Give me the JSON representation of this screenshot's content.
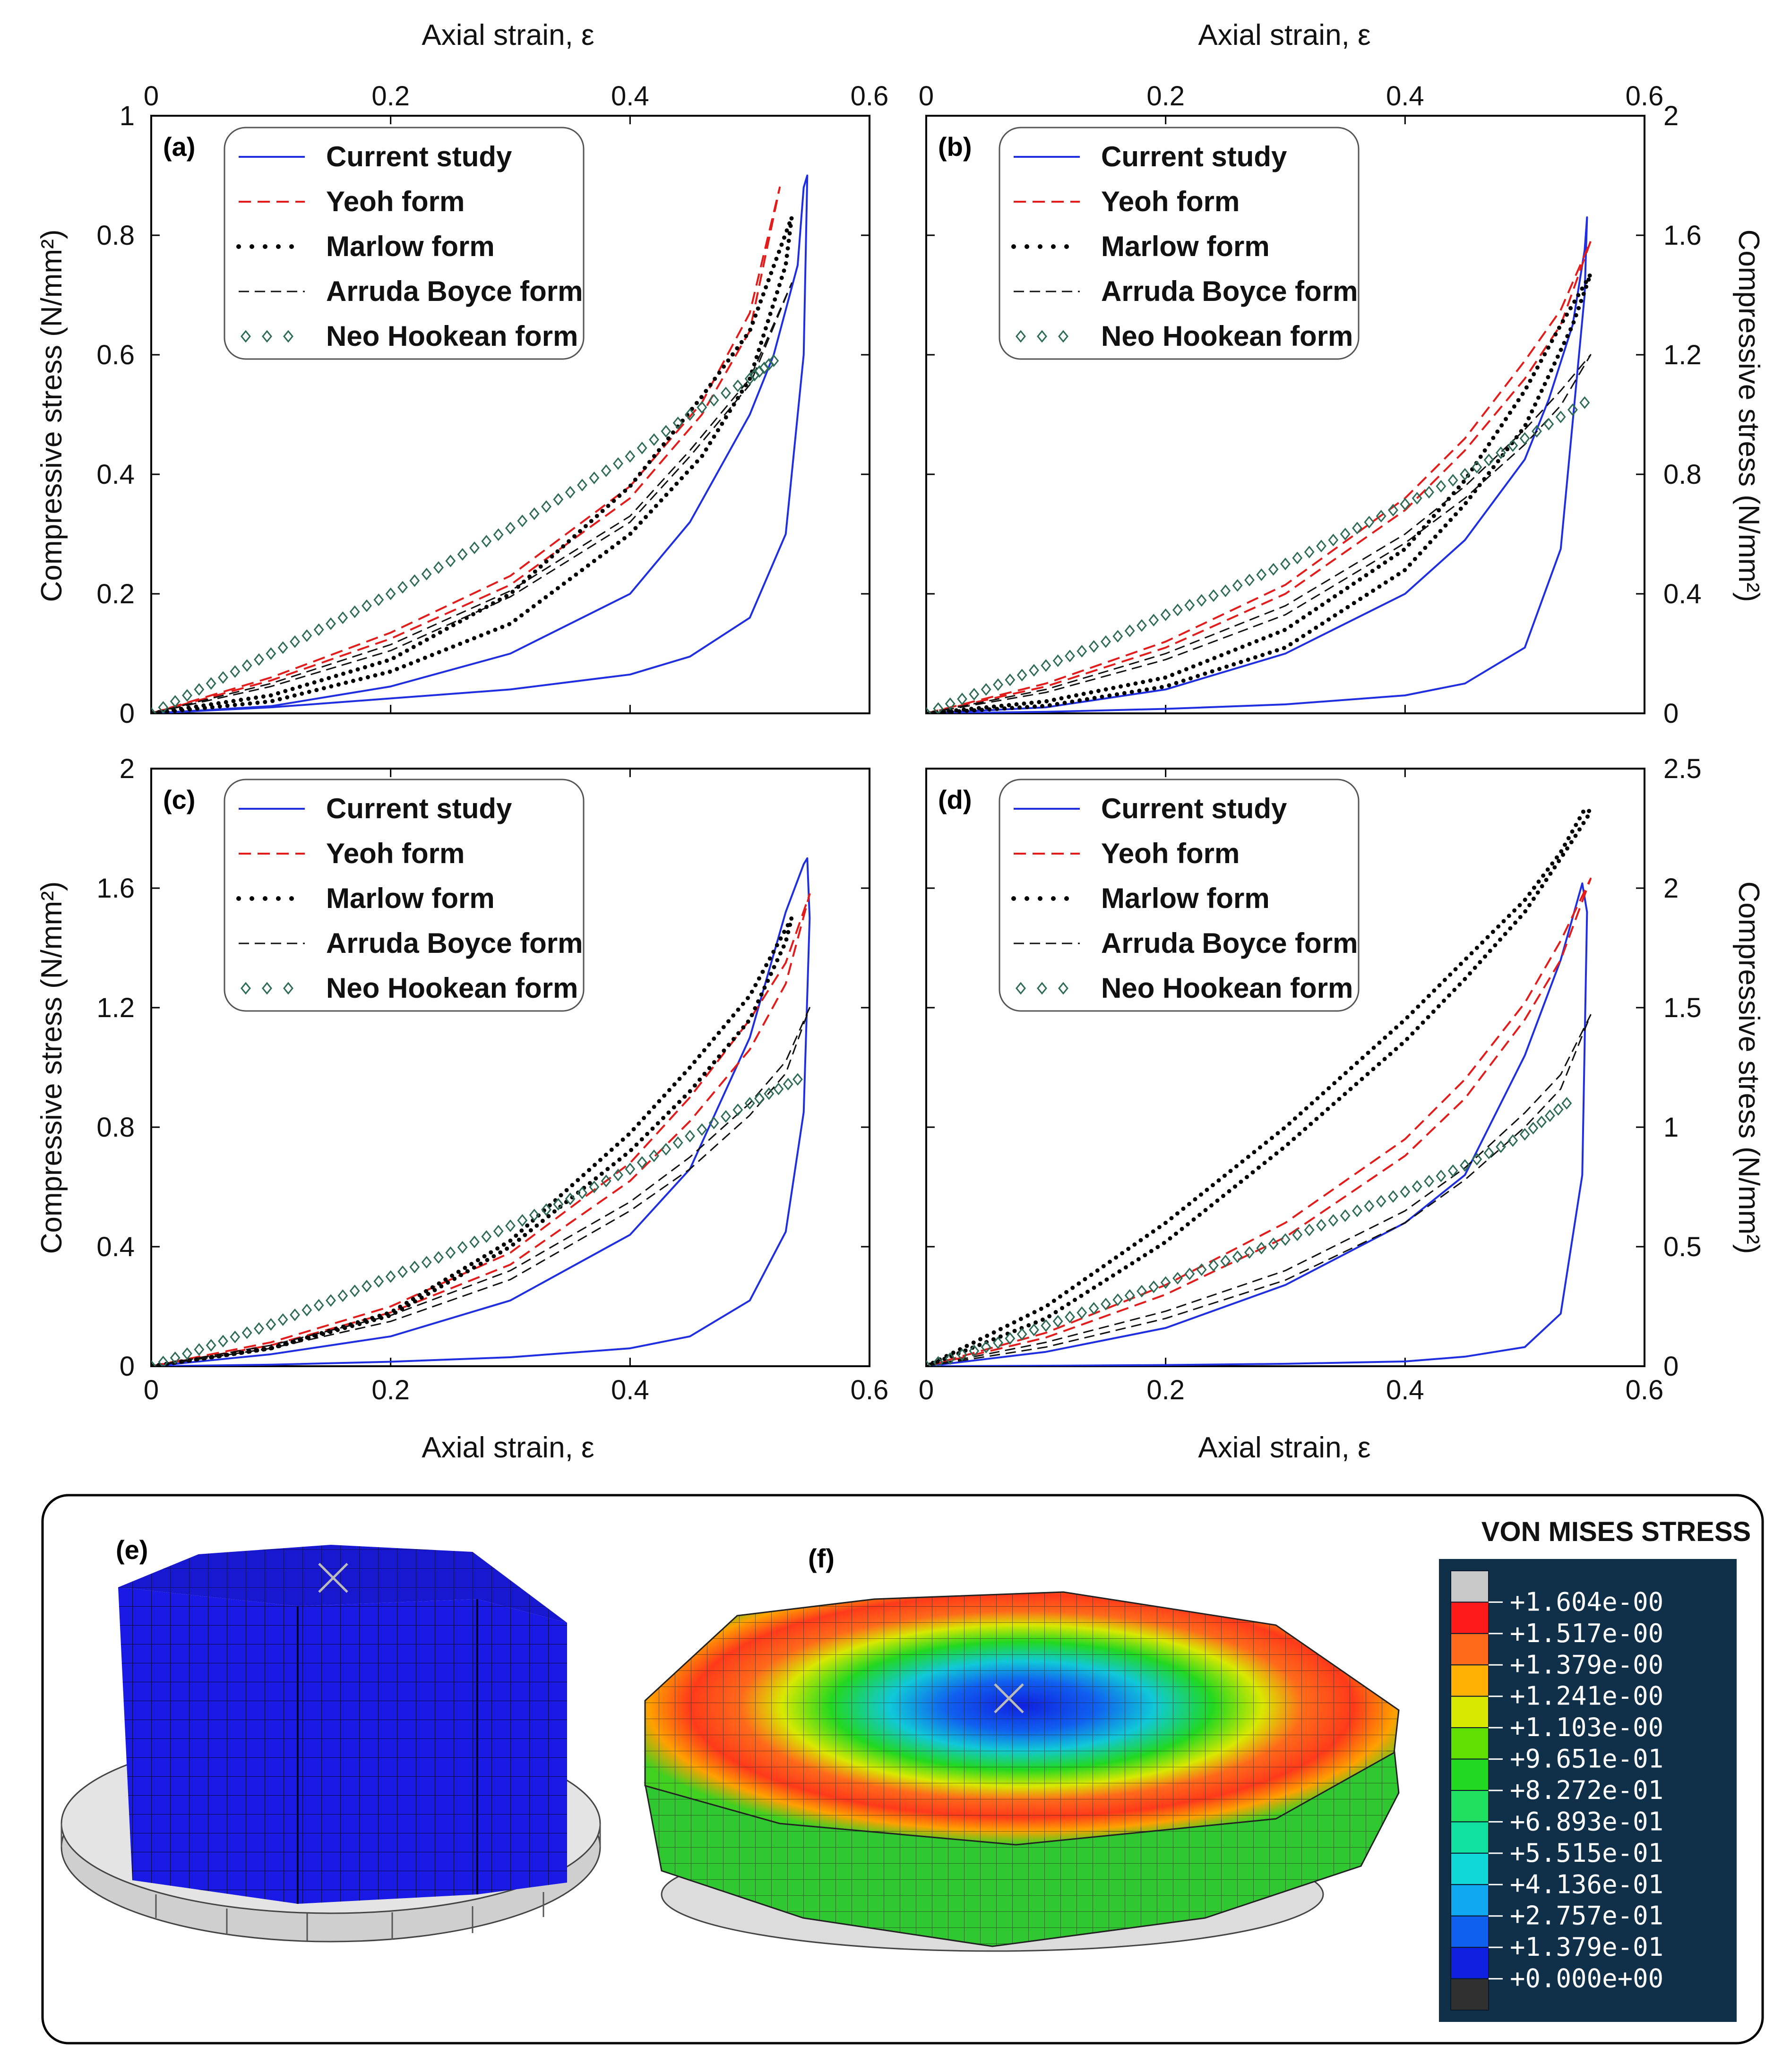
{
  "chart_data": [
    {
      "id": "a",
      "type": "line",
      "panel_label": "(a)",
      "xlabel_top": "Axial strain, ε",
      "ylabel_left": "Compressive stress (N/mm²)",
      "xlim": [
        0,
        0.6
      ],
      "ylim": [
        0,
        1
      ],
      "xticks": [
        "0",
        "0.2",
        "0.4",
        "0.6"
      ],
      "yticks": [
        "0",
        "0.2",
        "0.4",
        "0.6",
        "0.8",
        "1"
      ],
      "legend_position": "top-left",
      "series": [
        {
          "name": "Current study",
          "style": "solid",
          "color": "#1f2fe0",
          "x": [
            0,
            0.1,
            0.2,
            0.3,
            0.4,
            0.45,
            0.5,
            0.53,
            0.545,
            0.548,
            0.545,
            0.54,
            0.52,
            0.5,
            0.45,
            0.4,
            0.3,
            0.2,
            0.1,
            0
          ],
          "y": [
            0,
            0.01,
            0.025,
            0.04,
            0.065,
            0.095,
            0.16,
            0.3,
            0.6,
            0.9,
            0.88,
            0.75,
            0.6,
            0.5,
            0.32,
            0.2,
            0.1,
            0.045,
            0.012,
            0
          ]
        },
        {
          "name": "Yeoh form",
          "style": "dashed",
          "color": "#e21b1b",
          "x": [
            0,
            0.1,
            0.2,
            0.3,
            0.4,
            0.46,
            0.5,
            0.525,
            0.5,
            0.46,
            0.4,
            0.3,
            0.2,
            0.1,
            0
          ],
          "y": [
            0,
            0.06,
            0.135,
            0.23,
            0.38,
            0.52,
            0.67,
            0.88,
            0.64,
            0.5,
            0.36,
            0.215,
            0.125,
            0.055,
            0
          ]
        },
        {
          "name": "Marlow form",
          "style": "dotted",
          "color": "#000000",
          "x": [
            0,
            0.1,
            0.2,
            0.3,
            0.4,
            0.46,
            0.5,
            0.535,
            0.53,
            0.5,
            0.46,
            0.4,
            0.3,
            0.2,
            0.1,
            0
          ],
          "y": [
            0,
            0.03,
            0.09,
            0.2,
            0.38,
            0.53,
            0.64,
            0.83,
            0.75,
            0.56,
            0.43,
            0.3,
            0.15,
            0.07,
            0.02,
            0
          ]
        },
        {
          "name": "Arruda Boyce form",
          "style": "longdash",
          "color": "#111111",
          "x": [
            0,
            0.1,
            0.2,
            0.3,
            0.4,
            0.45,
            0.5,
            0.535,
            0.5,
            0.45,
            0.4,
            0.3,
            0.2,
            0.1,
            0
          ],
          "y": [
            0,
            0.05,
            0.115,
            0.205,
            0.33,
            0.44,
            0.56,
            0.72,
            0.55,
            0.43,
            0.32,
            0.195,
            0.105,
            0.045,
            0
          ]
        },
        {
          "name": "Neo Hookean form",
          "style": "markers",
          "color": "#2e6b57",
          "x": [
            0,
            0.05,
            0.1,
            0.15,
            0.2,
            0.25,
            0.3,
            0.35,
            0.4,
            0.45,
            0.5,
            0.52
          ],
          "y": [
            0,
            0.05,
            0.1,
            0.15,
            0.2,
            0.255,
            0.31,
            0.37,
            0.43,
            0.5,
            0.56,
            0.59
          ]
        }
      ]
    },
    {
      "id": "b",
      "type": "line",
      "panel_label": "(b)",
      "xlabel_top": "Axial strain, ε",
      "ylabel_right": "Compressive stress (N/mm²)",
      "xlim": [
        0,
        0.6
      ],
      "ylim": [
        0,
        2
      ],
      "xticks": [
        "0",
        "0.2",
        "0.4",
        "0.6"
      ],
      "yticks": [
        "0",
        "0.4",
        "0.8",
        "1.2",
        "1.6",
        "2"
      ],
      "legend_position": "top-left",
      "series": [
        {
          "name": "Current study",
          "style": "solid",
          "color": "#1f2fe0",
          "x": [
            0,
            0.1,
            0.2,
            0.3,
            0.4,
            0.45,
            0.5,
            0.53,
            0.55,
            0.552,
            0.55,
            0.54,
            0.52,
            0.5,
            0.45,
            0.4,
            0.3,
            0.2,
            0.1,
            0
          ],
          "y": [
            0,
            0.005,
            0.015,
            0.03,
            0.06,
            0.1,
            0.22,
            0.55,
            1.4,
            1.66,
            1.55,
            1.3,
            1.05,
            0.85,
            0.58,
            0.4,
            0.2,
            0.08,
            0.02,
            0
          ]
        },
        {
          "name": "Yeoh form",
          "style": "dashed",
          "color": "#e21b1b",
          "x": [
            0,
            0.1,
            0.2,
            0.3,
            0.4,
            0.45,
            0.5,
            0.53,
            0.555,
            0.53,
            0.5,
            0.45,
            0.4,
            0.3,
            0.2,
            0.1,
            0
          ],
          "y": [
            0,
            0.1,
            0.24,
            0.43,
            0.72,
            0.92,
            1.18,
            1.35,
            1.58,
            1.3,
            1.12,
            0.88,
            0.68,
            0.4,
            0.22,
            0.09,
            0
          ]
        },
        {
          "name": "Marlow form",
          "style": "dotted",
          "color": "#000000",
          "x": [
            0,
            0.1,
            0.2,
            0.3,
            0.4,
            0.45,
            0.5,
            0.53,
            0.555,
            0.54,
            0.5,
            0.45,
            0.4,
            0.3,
            0.2,
            0.1,
            0
          ],
          "y": [
            0,
            0.04,
            0.12,
            0.28,
            0.55,
            0.78,
            1.08,
            1.3,
            1.47,
            1.3,
            0.96,
            0.7,
            0.48,
            0.22,
            0.09,
            0.025,
            0
          ]
        },
        {
          "name": "Arruda Boyce form",
          "style": "longdash",
          "color": "#111111",
          "x": [
            0,
            0.1,
            0.2,
            0.3,
            0.4,
            0.45,
            0.5,
            0.53,
            0.555,
            0.53,
            0.5,
            0.45,
            0.4,
            0.3,
            0.2,
            0.1,
            0
          ],
          "y": [
            0,
            0.08,
            0.2,
            0.36,
            0.6,
            0.76,
            0.95,
            1.08,
            1.2,
            1.03,
            0.9,
            0.72,
            0.57,
            0.33,
            0.18,
            0.07,
            0
          ]
        },
        {
          "name": "Neo Hookean form",
          "style": "markers",
          "color": "#2e6b57",
          "x": [
            0,
            0.05,
            0.1,
            0.15,
            0.2,
            0.25,
            0.3,
            0.35,
            0.4,
            0.45,
            0.5,
            0.55
          ],
          "y": [
            0,
            0.08,
            0.16,
            0.24,
            0.33,
            0.41,
            0.5,
            0.6,
            0.7,
            0.8,
            0.92,
            1.04
          ]
        }
      ]
    },
    {
      "id": "c",
      "type": "line",
      "panel_label": "(c)",
      "xlabel_bottom": "Axial strain, ε",
      "ylabel_left": "Compressive stress (N/mm²)",
      "xlim": [
        0,
        0.6
      ],
      "ylim": [
        0,
        2
      ],
      "xticks": [
        "0",
        "0.2",
        "0.4",
        "0.6"
      ],
      "yticks": [
        "0",
        "0.4",
        "0.8",
        "1.2",
        "1.6",
        "2"
      ],
      "legend_position": "top-left",
      "series": [
        {
          "name": "Current study",
          "style": "solid",
          "color": "#1f2fe0",
          "x": [
            0,
            0.1,
            0.2,
            0.3,
            0.4,
            0.45,
            0.5,
            0.53,
            0.545,
            0.55,
            0.548,
            0.545,
            0.53,
            0.5,
            0.45,
            0.4,
            0.3,
            0.2,
            0.1,
            0
          ],
          "y": [
            0,
            0.005,
            0.015,
            0.03,
            0.06,
            0.1,
            0.22,
            0.45,
            0.85,
            1.5,
            1.7,
            1.68,
            1.52,
            1.1,
            0.66,
            0.44,
            0.22,
            0.1,
            0.04,
            0
          ]
        },
        {
          "name": "Yeoh form",
          "style": "dashed",
          "color": "#e21b1b",
          "x": [
            0,
            0.1,
            0.2,
            0.3,
            0.4,
            0.45,
            0.5,
            0.53,
            0.55,
            0.53,
            0.5,
            0.45,
            0.4,
            0.3,
            0.2,
            0.1,
            0
          ],
          "y": [
            0,
            0.08,
            0.2,
            0.38,
            0.68,
            0.9,
            1.16,
            1.35,
            1.58,
            1.28,
            1.06,
            0.82,
            0.62,
            0.34,
            0.18,
            0.07,
            0
          ]
        },
        {
          "name": "Marlow form",
          "style": "dotted",
          "color": "#000000",
          "x": [
            0,
            0.1,
            0.2,
            0.3,
            0.4,
            0.45,
            0.5,
            0.535,
            0.53,
            0.5,
            0.45,
            0.4,
            0.3,
            0.2,
            0.1,
            0
          ],
          "y": [
            0,
            0.06,
            0.18,
            0.42,
            0.78,
            1.0,
            1.24,
            1.5,
            1.42,
            1.16,
            0.92,
            0.72,
            0.4,
            0.17,
            0.06,
            0
          ]
        },
        {
          "name": "Arruda Boyce form",
          "style": "longdash",
          "color": "#111111",
          "x": [
            0,
            0.1,
            0.2,
            0.3,
            0.4,
            0.45,
            0.5,
            0.53,
            0.55,
            0.53,
            0.5,
            0.45,
            0.4,
            0.3,
            0.2,
            0.1,
            0
          ],
          "y": [
            0,
            0.07,
            0.17,
            0.32,
            0.55,
            0.7,
            0.88,
            1.02,
            1.2,
            0.98,
            0.84,
            0.66,
            0.52,
            0.29,
            0.15,
            0.06,
            0
          ]
        },
        {
          "name": "Neo Hookean form",
          "style": "markers",
          "color": "#2e6b57",
          "x": [
            0,
            0.05,
            0.1,
            0.15,
            0.2,
            0.25,
            0.3,
            0.35,
            0.4,
            0.45,
            0.5,
            0.54
          ],
          "y": [
            0,
            0.07,
            0.14,
            0.22,
            0.3,
            0.38,
            0.47,
            0.56,
            0.66,
            0.77,
            0.88,
            0.96
          ]
        }
      ]
    },
    {
      "id": "d",
      "type": "line",
      "panel_label": "(d)",
      "xlabel_bottom": "Axial strain, ε",
      "ylabel_right": "Compressive stress (N/mm²)",
      "xlim": [
        0,
        0.6
      ],
      "ylim": [
        0,
        2.5
      ],
      "xticks": [
        "0",
        "0.2",
        "0.4",
        "0.6"
      ],
      "yticks": [
        "0",
        "0.5",
        "1",
        "1.5",
        "2",
        "2.5"
      ],
      "legend_position": "top-left",
      "series": [
        {
          "name": "Current study",
          "style": "solid",
          "color": "#1f2fe0",
          "x": [
            0,
            0.1,
            0.2,
            0.3,
            0.4,
            0.45,
            0.5,
            0.53,
            0.548,
            0.552,
            0.548,
            0.53,
            0.5,
            0.45,
            0.4,
            0.3,
            0.2,
            0.1,
            0
          ],
          "y": [
            0,
            0.002,
            0.005,
            0.01,
            0.02,
            0.04,
            0.08,
            0.22,
            0.8,
            1.9,
            2.02,
            1.7,
            1.3,
            0.8,
            0.6,
            0.34,
            0.16,
            0.06,
            0
          ]
        },
        {
          "name": "Yeoh form",
          "style": "dashed",
          "color": "#e21b1b",
          "x": [
            0,
            0.1,
            0.2,
            0.3,
            0.4,
            0.45,
            0.5,
            0.53,
            0.555,
            0.53,
            0.5,
            0.45,
            0.4,
            0.3,
            0.2,
            0.1,
            0
          ],
          "y": [
            0,
            0.14,
            0.34,
            0.6,
            0.95,
            1.2,
            1.52,
            1.78,
            2.04,
            1.7,
            1.45,
            1.12,
            0.88,
            0.54,
            0.3,
            0.12,
            0
          ]
        },
        {
          "name": "Marlow form",
          "style": "dotted",
          "color": "#000000",
          "x": [
            0,
            0.1,
            0.2,
            0.3,
            0.4,
            0.45,
            0.5,
            0.53,
            0.55,
            0.555,
            0.54,
            0.5,
            0.45,
            0.4,
            0.3,
            0.2,
            0.1,
            0
          ],
          "y": [
            0,
            0.25,
            0.6,
            1.0,
            1.45,
            1.7,
            1.95,
            2.15,
            2.33,
            2.32,
            2.2,
            1.9,
            1.62,
            1.36,
            0.92,
            0.52,
            0.2,
            0
          ]
        },
        {
          "name": "Arruda Boyce form",
          "style": "longdash",
          "color": "#111111",
          "x": [
            0,
            0.1,
            0.2,
            0.3,
            0.4,
            0.45,
            0.5,
            0.53,
            0.555,
            0.53,
            0.5,
            0.45,
            0.4,
            0.3,
            0.2,
            0.1,
            0
          ],
          "y": [
            0,
            0.1,
            0.23,
            0.4,
            0.65,
            0.83,
            1.06,
            1.22,
            1.47,
            1.16,
            1.0,
            0.78,
            0.6,
            0.36,
            0.2,
            0.08,
            0
          ]
        },
        {
          "name": "Neo Hookean form",
          "style": "markers",
          "color": "#2e6b57",
          "x": [
            0,
            0.05,
            0.1,
            0.15,
            0.2,
            0.25,
            0.3,
            0.35,
            0.4,
            0.45,
            0.5,
            0.535
          ],
          "y": [
            0,
            0.08,
            0.17,
            0.26,
            0.35,
            0.44,
            0.53,
            0.63,
            0.73,
            0.84,
            0.97,
            1.1
          ]
        }
      ]
    }
  ],
  "legend_labels": [
    "Current study",
    "Yeoh form",
    "Marlow form",
    "Arruda Boyce form",
    "Neo Hookean form"
  ],
  "fem": {
    "label_e": "(e)",
    "label_f": "(f)",
    "colorbar_title": "VON MISES STRESS",
    "colorbar_values": [
      "+1.604e-00",
      "+1.517e-00",
      "+1.379e-00",
      "+1.241e-00",
      "+1.103e-00",
      "+9.651e-01",
      "+8.272e-01",
      "+6.893e-01",
      "+5.515e-01",
      "+4.136e-01",
      "+2.757e-01",
      "+1.379e-01",
      "+0.000e+00"
    ],
    "colorbar_colors": [
      "#c8c8c8",
      "#ff1a1a",
      "#ff6a1a",
      "#ffb000",
      "#d8e800",
      "#60e000",
      "#22d820",
      "#1fe060",
      "#10e0a0",
      "#10d8d8",
      "#10a8f0",
      "#1060f0",
      "#1020e0",
      "#303030"
    ],
    "colors": {
      "mesh_blue": "#1a1ae6",
      "base_gray": "#dcdcdc",
      "panel_bg": "#10304a"
    }
  }
}
